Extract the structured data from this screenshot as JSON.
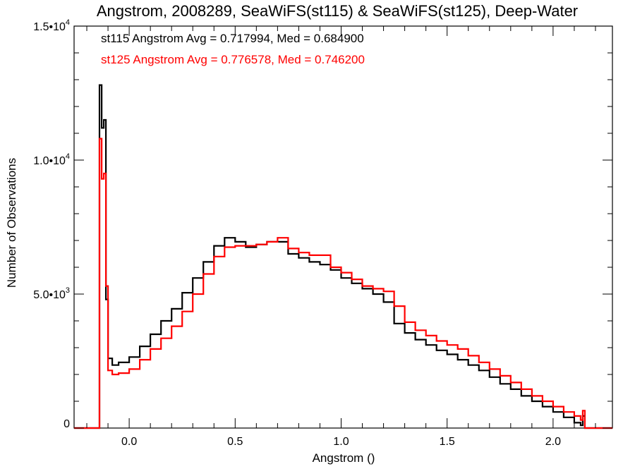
{
  "chart_data": {
    "type": "line",
    "title": "Angstrom, 2008289, SeaWiFS(st115) & SeaWiFS(st125), Deep-Water",
    "xlabel": "Angstrom ()",
    "ylabel": "Number of Observations",
    "xlim": [
      -0.26,
      2.28
    ],
    "ylim": [
      0,
      15000
    ],
    "x_ticks": [
      {
        "value": 0.0,
        "label": "0.0"
      },
      {
        "value": 0.5,
        "label": "0.5"
      },
      {
        "value": 1.0,
        "label": "1.0"
      },
      {
        "value": 1.5,
        "label": "1.5"
      },
      {
        "value": 2.0,
        "label": "2.0"
      }
    ],
    "y_ticks": [
      {
        "value": 0,
        "mantissa": "0",
        "exp": ""
      },
      {
        "value": 5000,
        "mantissa": "5.0•10",
        "exp": "3"
      },
      {
        "value": 10000,
        "mantissa": "1.0•10",
        "exp": "4"
      },
      {
        "value": 15000,
        "mantissa": "1.5•10",
        "exp": "4"
      }
    ],
    "grid": false,
    "style": "step",
    "annotations": [
      {
        "text": "st115 Angstrom Avg = 0.717994, Med = 0.684900",
        "color": "#000000"
      },
      {
        "text": "st125 Angstrom Avg = 0.776578, Med = 0.746200",
        "color": "#ff0000"
      }
    ],
    "series": [
      {
        "color": "#000000",
        "points": [
          [
            -0.26,
            0
          ],
          [
            -0.15,
            0
          ],
          [
            -0.14,
            12800
          ],
          [
            -0.13,
            11200
          ],
          [
            -0.12,
            11500
          ],
          [
            -0.11,
            4800
          ],
          [
            -0.1,
            2600
          ],
          [
            -0.08,
            2350
          ],
          [
            -0.05,
            2450
          ],
          [
            0.0,
            2650
          ],
          [
            0.05,
            3050
          ],
          [
            0.1,
            3500
          ],
          [
            0.15,
            4000
          ],
          [
            0.2,
            4450
          ],
          [
            0.25,
            5050
          ],
          [
            0.3,
            5600
          ],
          [
            0.35,
            6200
          ],
          [
            0.4,
            6800
          ],
          [
            0.45,
            7100
          ],
          [
            0.5,
            6950
          ],
          [
            0.55,
            6750
          ],
          [
            0.6,
            6850
          ],
          [
            0.65,
            6950
          ],
          [
            0.7,
            6950
          ],
          [
            0.75,
            6500
          ],
          [
            0.8,
            6350
          ],
          [
            0.85,
            6200
          ],
          [
            0.9,
            6100
          ],
          [
            0.95,
            5900
          ],
          [
            1.0,
            5600
          ],
          [
            1.05,
            5400
          ],
          [
            1.1,
            5200
          ],
          [
            1.15,
            5000
          ],
          [
            1.2,
            4700
          ],
          [
            1.25,
            3900
          ],
          [
            1.3,
            3550
          ],
          [
            1.35,
            3300
          ],
          [
            1.4,
            3100
          ],
          [
            1.45,
            2900
          ],
          [
            1.5,
            2750
          ],
          [
            1.55,
            2550
          ],
          [
            1.6,
            2350
          ],
          [
            1.65,
            2150
          ],
          [
            1.7,
            1900
          ],
          [
            1.75,
            1650
          ],
          [
            1.8,
            1450
          ],
          [
            1.85,
            1200
          ],
          [
            1.9,
            1000
          ],
          [
            1.95,
            800
          ],
          [
            2.0,
            600
          ],
          [
            2.05,
            400
          ],
          [
            2.1,
            200
          ],
          [
            2.13,
            100
          ],
          [
            2.14,
            450
          ],
          [
            2.15,
            0
          ],
          [
            2.28,
            0
          ]
        ]
      },
      {
        "color": "#ff0000",
        "points": [
          [
            -0.26,
            0
          ],
          [
            -0.15,
            0
          ],
          [
            -0.14,
            10800
          ],
          [
            -0.13,
            9300
          ],
          [
            -0.12,
            9500
          ],
          [
            -0.11,
            5300
          ],
          [
            -0.1,
            2150
          ],
          [
            -0.08,
            2000
          ],
          [
            -0.05,
            2050
          ],
          [
            0.0,
            2200
          ],
          [
            0.05,
            2550
          ],
          [
            0.1,
            2950
          ],
          [
            0.15,
            3350
          ],
          [
            0.2,
            3800
          ],
          [
            0.25,
            4350
          ],
          [
            0.3,
            5000
          ],
          [
            0.35,
            5750
          ],
          [
            0.4,
            6400
          ],
          [
            0.45,
            6750
          ],
          [
            0.5,
            6800
          ],
          [
            0.55,
            6800
          ],
          [
            0.6,
            6850
          ],
          [
            0.65,
            6950
          ],
          [
            0.7,
            7100
          ],
          [
            0.75,
            6700
          ],
          [
            0.8,
            6550
          ],
          [
            0.85,
            6450
          ],
          [
            0.9,
            6450
          ],
          [
            0.95,
            6000
          ],
          [
            1.0,
            5800
          ],
          [
            1.05,
            5550
          ],
          [
            1.1,
            5300
          ],
          [
            1.15,
            5200
          ],
          [
            1.2,
            5100
          ],
          [
            1.25,
            4550
          ],
          [
            1.3,
            3950
          ],
          [
            1.35,
            3650
          ],
          [
            1.4,
            3450
          ],
          [
            1.45,
            3250
          ],
          [
            1.5,
            3100
          ],
          [
            1.55,
            2950
          ],
          [
            1.6,
            2700
          ],
          [
            1.65,
            2450
          ],
          [
            1.7,
            2200
          ],
          [
            1.75,
            1950
          ],
          [
            1.8,
            1700
          ],
          [
            1.85,
            1450
          ],
          [
            1.9,
            1200
          ],
          [
            1.95,
            1000
          ],
          [
            2.0,
            800
          ],
          [
            2.05,
            600
          ],
          [
            2.1,
            450
          ],
          [
            2.13,
            300
          ],
          [
            2.14,
            650
          ],
          [
            2.15,
            0
          ],
          [
            2.28,
            0
          ]
        ]
      }
    ]
  }
}
